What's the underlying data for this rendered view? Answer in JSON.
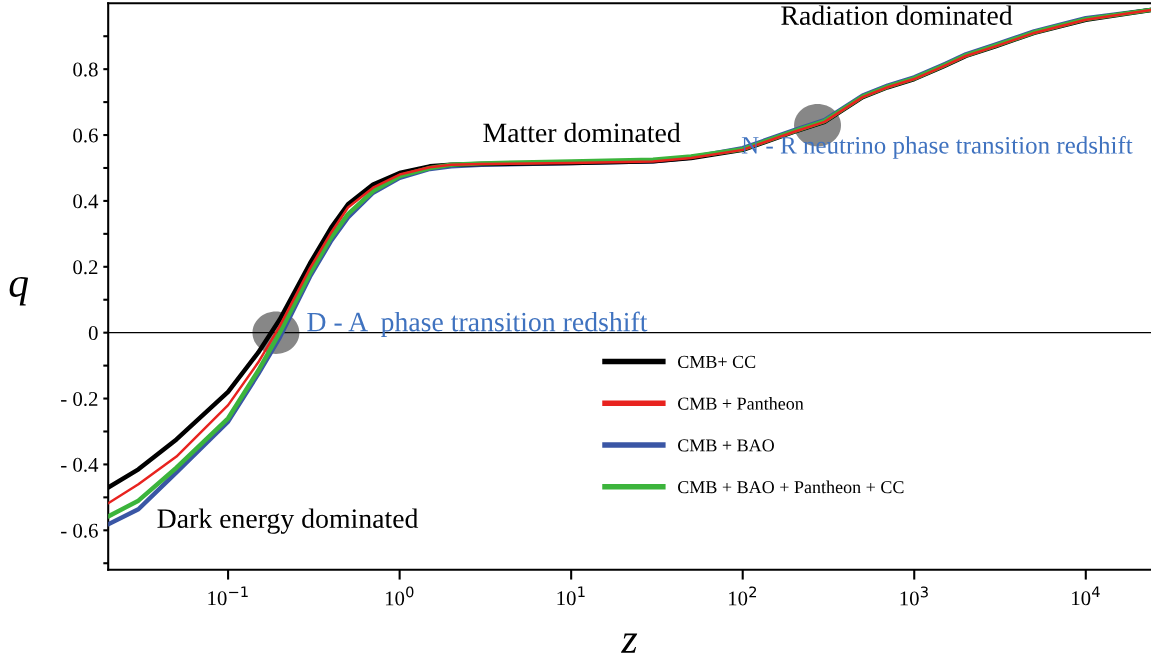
{
  "chart_data": {
    "type": "line",
    "xlabel": "z",
    "ylabel": "q",
    "log": "x",
    "x": [
      0.02,
      0.03,
      0.05,
      0.1,
      0.15,
      0.2,
      0.3,
      0.4,
      0.5,
      0.7,
      1,
      1.5,
      2,
      3,
      10,
      30,
      50,
      100,
      200,
      300,
      500,
      700,
      1000,
      1500,
      2000,
      3000,
      5000,
      10000,
      24000
    ],
    "series": [
      {
        "name": "CMB+ CC",
        "color": "#000000",
        "values": [
          -0.47,
          -0.415,
          -0.324,
          -0.18,
          -0.06,
          0.04,
          0.21,
          0.32,
          0.39,
          0.45,
          0.485,
          0.505,
          0.51,
          0.512,
          0.515,
          0.52,
          0.53,
          0.555,
          0.61,
          0.64,
          0.715,
          0.745,
          0.77,
          0.81,
          0.84,
          0.87,
          0.91,
          0.95,
          0.98
        ]
      },
      {
        "name": "CMB + Pantheon",
        "color": "#e8231f",
        "values": [
          -0.518,
          -0.46,
          -0.376,
          -0.22,
          -0.09,
          0.02,
          0.195,
          0.305,
          0.38,
          0.44,
          0.48,
          0.502,
          0.51,
          0.512,
          0.515,
          0.52,
          0.53,
          0.555,
          0.61,
          0.64,
          0.715,
          0.745,
          0.77,
          0.81,
          0.84,
          0.87,
          0.91,
          0.95,
          0.98
        ]
      },
      {
        "name": "CMB + BAO",
        "color": "#3a56a5",
        "values": [
          -0.582,
          -0.536,
          -0.424,
          -0.27,
          -0.125,
          -0.015,
          0.17,
          0.28,
          0.35,
          0.425,
          0.47,
          0.497,
          0.505,
          0.51,
          0.515,
          0.52,
          0.532,
          0.56,
          0.615,
          0.645,
          0.72,
          0.75,
          0.775,
          0.815,
          0.845,
          0.875,
          0.915,
          0.955,
          0.98
        ]
      },
      {
        "name": "CMB + BAO + Pantheon + CC",
        "color": "#3cb43c",
        "values": [
          -0.558,
          -0.51,
          -0.41,
          -0.26,
          -0.115,
          0.0,
          0.18,
          0.29,
          0.36,
          0.43,
          0.475,
          0.5,
          0.51,
          0.514,
          0.52,
          0.525,
          0.535,
          0.557,
          0.612,
          0.642,
          0.717,
          0.747,
          0.772,
          0.812,
          0.842,
          0.872,
          0.912,
          0.952,
          0.98
        ]
      }
    ],
    "xlim": [
      0.02,
      24000
    ],
    "ylim": [
      -0.72,
      1.0
    ],
    "xticks": [
      {
        "value": 0.1,
        "label": "10$^{−1}$"
      },
      {
        "value": 1,
        "label": "10$^{0}$"
      },
      {
        "value": 10,
        "label": "10$^{1}$"
      },
      {
        "value": 100,
        "label": "10$^{2}$"
      },
      {
        "value": 1000,
        "label": "10$^{3}$"
      },
      {
        "value": 10000,
        "label": "10$^{4}$"
      }
    ],
    "yticks": [
      {
        "value": -0.7,
        "label": null
      },
      {
        "value": -0.6,
        "label": "- 0.6"
      },
      {
        "value": -0.5,
        "label": null
      },
      {
        "value": -0.4,
        "label": "- 0.4"
      },
      {
        "value": -0.3,
        "label": null
      },
      {
        "value": -0.2,
        "label": "- 0.2"
      },
      {
        "value": -0.1,
        "label": null
      },
      0,
      {
        "value": 0.1,
        "label": null
      },
      0.2,
      {
        "value": 0.3,
        "label": null
      },
      0.4,
      {
        "value": 0.5,
        "label": null
      },
      0.6,
      {
        "value": 0.7,
        "label": null
      },
      0.8,
      {
        "value": 0.9,
        "label": null
      }
    ],
    "ref_lines": [
      {
        "axis": "y",
        "value": 0,
        "color": "#000000"
      }
    ],
    "annotations": [
      {
        "text": "D - A  phase transition redshift",
        "x": 0.19,
        "y": 0
      },
      {
        "text": "N - R neutrino phase transition redshift",
        "x": 273,
        "y": 0.63
      },
      "Radiation dominated",
      "Matter dominated",
      "Dark energy dominated"
    ],
    "legend": "bottom",
    "grid": false,
    "marker": "none",
    "line_style": "solid"
  }
}
